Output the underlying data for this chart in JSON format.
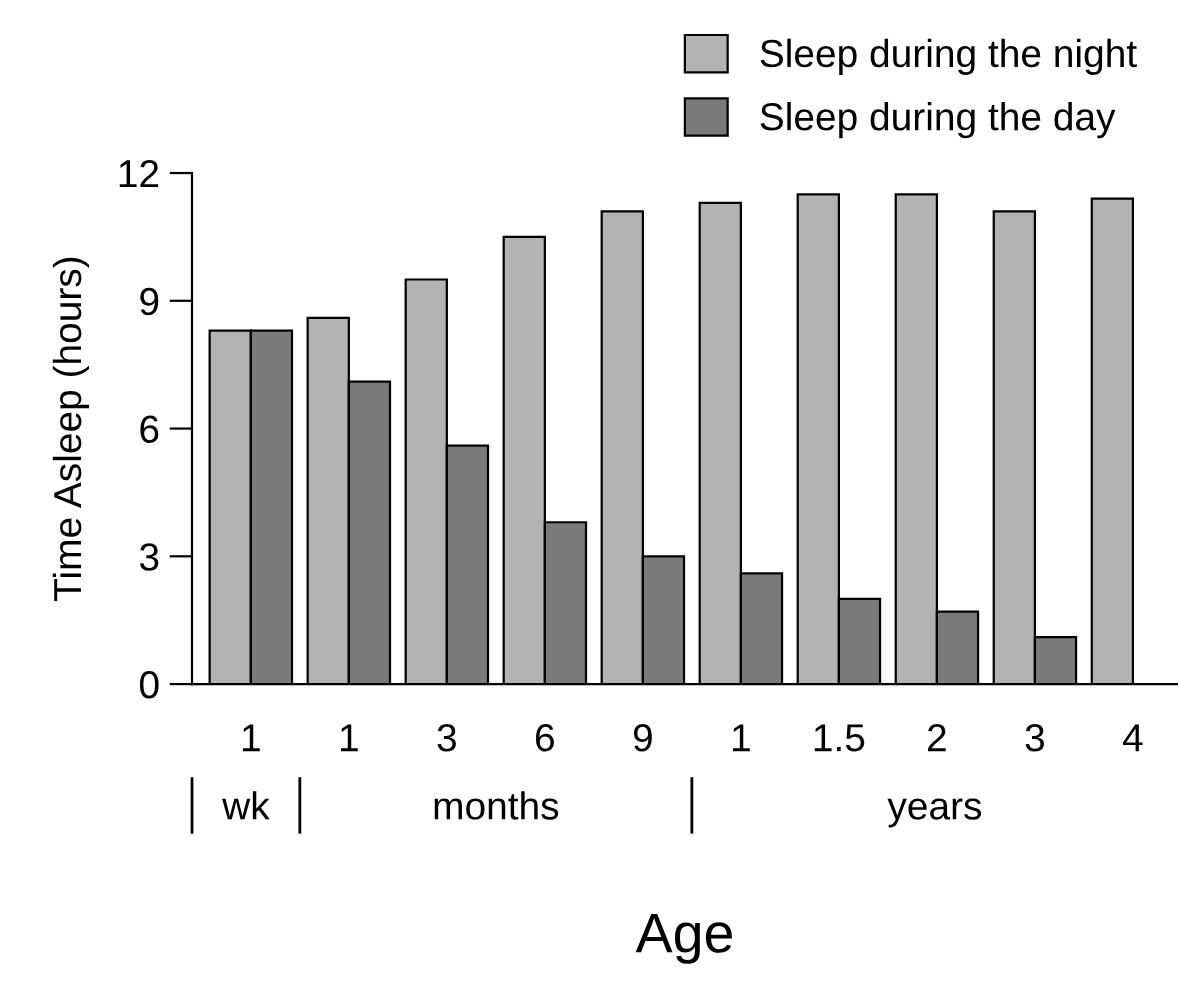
{
  "chart_data": {
    "type": "bar",
    "xlabel": "Age",
    "ylabel": "Time Asleep (hours)",
    "categories": [
      "1",
      "1",
      "3",
      "6",
      "9",
      "1",
      "1.5",
      "2",
      "3",
      "4"
    ],
    "series": [
      {
        "name": "Sleep during the night",
        "color": "#b3b3b3",
        "values": [
          8.3,
          8.6,
          9.5,
          10.5,
          11.1,
          11.3,
          11.5,
          11.5,
          11.1,
          11.4
        ]
      },
      {
        "name": "Sleep during the day",
        "color": "#7a7a7a",
        "values": [
          8.3,
          7.1,
          5.6,
          3.8,
          3.0,
          2.6,
          2.0,
          1.7,
          1.1,
          null
        ]
      }
    ],
    "ylim": [
      0,
      12
    ],
    "yticks": [
      0,
      3,
      6,
      9,
      12
    ],
    "grid": false,
    "legend": "top right",
    "annotations": [
      "wk",
      "months",
      "years"
    ]
  }
}
